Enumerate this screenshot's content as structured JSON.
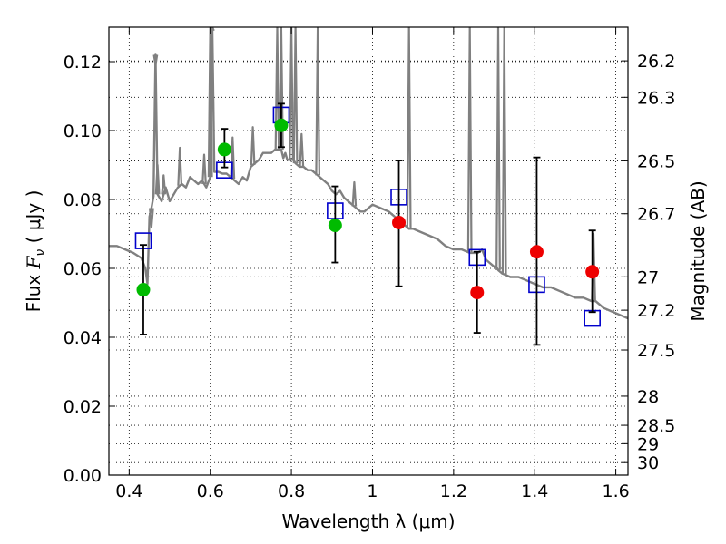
{
  "chart_data": {
    "type": "scatter",
    "xlabel": "Wavelength  λ (μm)",
    "ylabel_prefix": "Flux ",
    "ylabel_symbol": "F",
    "ylabel_subscript": "ν",
    "ylabel_suffix": " ( μJy )",
    "y2label": "Magnitude (AB)",
    "xlim": [
      0.35,
      1.63
    ],
    "ylim": [
      0.0,
      0.13
    ],
    "xticks": [
      0.4,
      0.6,
      0.8,
      1.0,
      1.2,
      1.4,
      1.6
    ],
    "xtick_labels": [
      "0.4",
      "0.6",
      "0.8",
      "1",
      "1.2",
      "1.4",
      "1.6"
    ],
    "yticks": [
      0.0,
      0.02,
      0.04,
      0.06,
      0.08,
      0.1,
      0.12
    ],
    "ytick_labels": [
      "0.00",
      "0.02",
      "0.04",
      "0.06",
      "0.08",
      "0.10",
      "0.12"
    ],
    "y2ticks": [
      {
        "mag": 26.2,
        "label": "26.2"
      },
      {
        "mag": 26.3,
        "label": "26.3"
      },
      {
        "mag": 26.5,
        "label": "26.5"
      },
      {
        "mag": 26.7,
        "label": "26.7"
      },
      {
        "mag": 27.0,
        "label": "27"
      },
      {
        "mag": 27.2,
        "label": "27.2"
      },
      {
        "mag": 27.5,
        "label": "27.5"
      },
      {
        "mag": 28.0,
        "label": "28"
      },
      {
        "mag": 28.5,
        "label": "28.5"
      },
      {
        "mag": 29.0,
        "label": "29"
      },
      {
        "mag": 30.0,
        "label": "30"
      }
    ],
    "grid": true,
    "colors": {
      "spectrum": "#808080",
      "green_points": "#00bb00",
      "red_points": "#ee0000",
      "model_squares": "#0000cc",
      "errorbar": "#000000",
      "grid": "#000000"
    },
    "series": [
      {
        "kind": "line",
        "x": [
          0.35,
          0.37,
          0.39,
          0.41,
          0.43,
          0.44,
          0.445,
          0.45,
          0.455,
          0.46,
          0.465,
          0.47,
          0.48,
          0.49,
          0.5,
          0.51,
          0.52,
          0.53,
          0.54,
          0.55,
          0.56,
          0.57,
          0.58,
          0.59,
          0.6,
          0.605,
          0.61,
          0.62,
          0.63,
          0.64,
          0.65,
          0.66,
          0.67,
          0.68,
          0.69,
          0.7,
          0.71,
          0.72,
          0.73,
          0.74,
          0.75,
          0.76,
          0.765,
          0.77,
          0.775,
          0.78,
          0.785,
          0.79,
          0.8,
          0.805,
          0.81,
          0.82,
          0.83,
          0.84,
          0.85,
          0.86,
          0.87,
          0.88,
          0.89,
          0.9,
          0.91,
          0.92,
          0.93,
          0.94,
          0.95,
          0.96,
          0.97,
          0.98,
          0.99,
          1.0,
          1.02,
          1.04,
          1.06,
          1.08,
          1.09,
          1.1,
          1.12,
          1.14,
          1.16,
          1.18,
          1.2,
          1.22,
          1.24,
          1.245,
          1.25,
          1.26,
          1.27,
          1.28,
          1.3,
          1.305,
          1.31,
          1.32,
          1.34,
          1.36,
          1.38,
          1.4,
          1.42,
          1.44,
          1.46,
          1.48,
          1.5,
          1.52,
          1.54,
          1.545,
          1.55,
          1.57,
          1.59,
          1.61,
          1.63
        ],
        "y": [
          0.0665,
          0.0665,
          0.0655,
          0.0645,
          0.063,
          0.06,
          0.0555,
          0.075,
          0.0775,
          0.081,
          0.122,
          0.0815,
          0.0795,
          0.0835,
          0.0795,
          0.0815,
          0.0835,
          0.0845,
          0.0835,
          0.0865,
          0.0855,
          0.0845,
          0.0855,
          0.0835,
          0.0865,
          0.129,
          0.088,
          0.088,
          0.0875,
          0.0875,
          0.0865,
          0.0855,
          0.0845,
          0.0865,
          0.0855,
          0.0895,
          0.0905,
          0.0915,
          0.0935,
          0.0935,
          0.0935,
          0.0945,
          0.0945,
          0.0945,
          0.0945,
          0.092,
          0.0935,
          0.0915,
          0.0915,
          0.0915,
          0.0905,
          0.0895,
          0.0895,
          0.0885,
          0.0885,
          0.0875,
          0.0865,
          0.0855,
          0.0845,
          0.0825,
          0.0815,
          0.0825,
          0.0805,
          0.0795,
          0.0785,
          0.0775,
          0.0765,
          0.0765,
          0.0775,
          0.0785,
          0.0775,
          0.0765,
          0.0745,
          0.0725,
          0.0715,
          0.0715,
          0.0705,
          0.0695,
          0.0685,
          0.0665,
          0.0655,
          0.0655,
          0.0645,
          0.0645,
          0.0645,
          0.0645,
          0.0655,
          0.0625,
          0.0605,
          0.0605,
          0.0595,
          0.0585,
          0.0575,
          0.0575,
          0.0565,
          0.0555,
          0.0545,
          0.0545,
          0.0535,
          0.0525,
          0.0515,
          0.0515,
          0.0505,
          0.0505,
          0.0505,
          0.0485,
          0.0475,
          0.0465,
          0.0455
        ]
      },
      {
        "kind": "spikes",
        "x": [
          0.455,
          0.465,
          0.47,
          0.485,
          0.525,
          0.585,
          0.6,
          0.605,
          0.655,
          0.705,
          0.765,
          0.775,
          0.8,
          0.81,
          0.825,
          0.865,
          0.955,
          1.09,
          1.24,
          1.31,
          1.325,
          1.545
        ],
        "y": [
          0.072,
          0.119,
          0.09,
          0.087,
          0.095,
          0.093,
          0.13,
          0.13,
          0.098,
          0.101,
          0.13,
          0.13,
          0.13,
          0.13,
          0.099,
          0.13,
          0.085,
          0.13,
          0.13,
          0.13,
          0.13,
          0.07
        ]
      },
      {
        "kind": "points",
        "color_key": "green_points",
        "x": [
          0.435,
          0.635,
          0.775,
          0.908
        ],
        "y": [
          0.0538,
          0.0945,
          0.1015,
          0.0725
        ],
        "err_low": [
          0.0408,
          0.0893,
          0.0952,
          0.0617
        ],
        "err_high": [
          0.0668,
          0.1005,
          0.1078,
          0.0838
        ]
      },
      {
        "kind": "points",
        "color_key": "red_points",
        "x": [
          1.065,
          1.258,
          1.405,
          1.542
        ],
        "y": [
          0.0733,
          0.053,
          0.0648,
          0.059
        ],
        "err_low": [
          0.0548,
          0.0413,
          0.0378,
          0.0473
        ],
        "err_high": [
          0.0913,
          0.0648,
          0.0922,
          0.071
        ]
      },
      {
        "kind": "squares",
        "color_key": "model_squares",
        "x": [
          0.435,
          0.635,
          0.775,
          0.908,
          1.065,
          1.258,
          1.405,
          1.542
        ],
        "y": [
          0.068,
          0.0885,
          0.1045,
          0.0767,
          0.0807,
          0.0632,
          0.0553,
          0.0455
        ]
      }
    ]
  }
}
